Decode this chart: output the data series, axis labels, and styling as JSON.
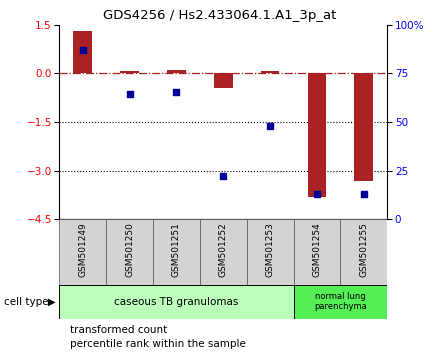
{
  "title": "GDS4256 / Hs2.433064.1.A1_3p_at",
  "samples": [
    "GSM501249",
    "GSM501250",
    "GSM501251",
    "GSM501252",
    "GSM501253",
    "GSM501254",
    "GSM501255"
  ],
  "transformed_count": [
    1.3,
    0.07,
    0.1,
    -0.45,
    0.07,
    -3.8,
    -3.3
  ],
  "percentile_rank_left": [
    0.72,
    -0.62,
    -0.58,
    -3.15,
    -1.62,
    -3.72,
    -3.72
  ],
  "ylim_left": [
    -4.5,
    1.5
  ],
  "ylim_right": [
    0,
    100
  ],
  "yticks_left": [
    1.5,
    0,
    -1.5,
    -3.0,
    -4.5
  ],
  "yticks_right": [
    100,
    75,
    50,
    25,
    0
  ],
  "hlines_dotted": [
    -1.5,
    -3.0
  ],
  "bar_color": "#aa2222",
  "dot_color": "#000099",
  "cell_types": [
    {
      "label": "caseous TB granulomas",
      "start": 0,
      "end": 5,
      "color": "#bbffbb"
    },
    {
      "label": "normal lung\nparenchyma",
      "start": 5,
      "end": 7,
      "color": "#55ee55"
    }
  ],
  "legend_bar_label": "transformed count",
  "legend_dot_label": "percentile rank within the sample",
  "cell_type_label": "cell type",
  "background_color": "#ffffff",
  "bar_width": 0.4
}
